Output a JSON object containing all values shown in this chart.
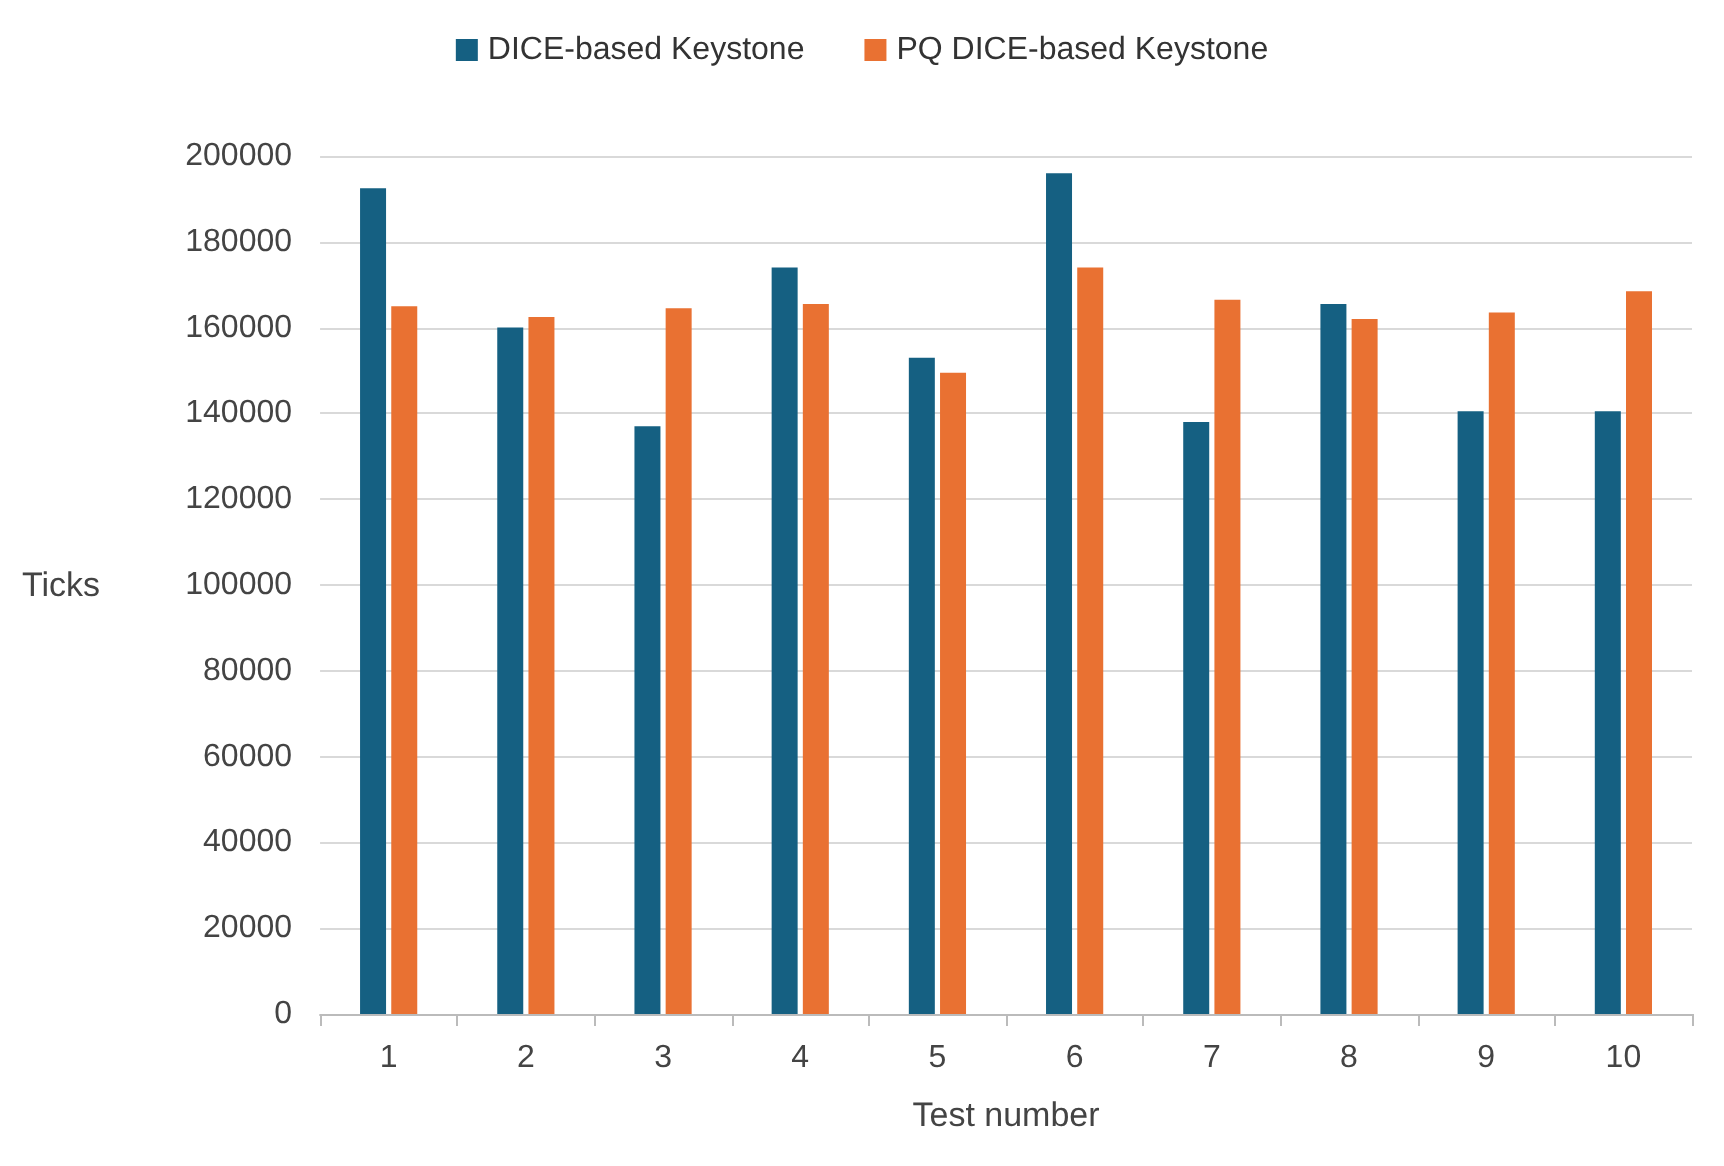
{
  "chart_data": {
    "type": "bar",
    "xlabel": "Test number",
    "ylabel": "Ticks",
    "categories": [
      "1",
      "2",
      "3",
      "4",
      "5",
      "6",
      "7",
      "8",
      "9",
      "10"
    ],
    "series": [
      {
        "name": "DICE-based Keystone",
        "color": "#156082",
        "values": [
          192500,
          160000,
          137000,
          174000,
          153000,
          196000,
          138000,
          165500,
          140500,
          140500
        ]
      },
      {
        "name": "PQ DICE-based Keystone",
        "color": "#e97132",
        "values": [
          165000,
          162500,
          164500,
          165500,
          149500,
          174000,
          166500,
          162000,
          163500,
          168500
        ]
      }
    ],
    "ylim": [
      0,
      200000
    ],
    "yticks": [
      0,
      20000,
      40000,
      60000,
      80000,
      100000,
      120000,
      140000,
      160000,
      180000,
      200000
    ],
    "grid": "y",
    "legend": "top"
  }
}
